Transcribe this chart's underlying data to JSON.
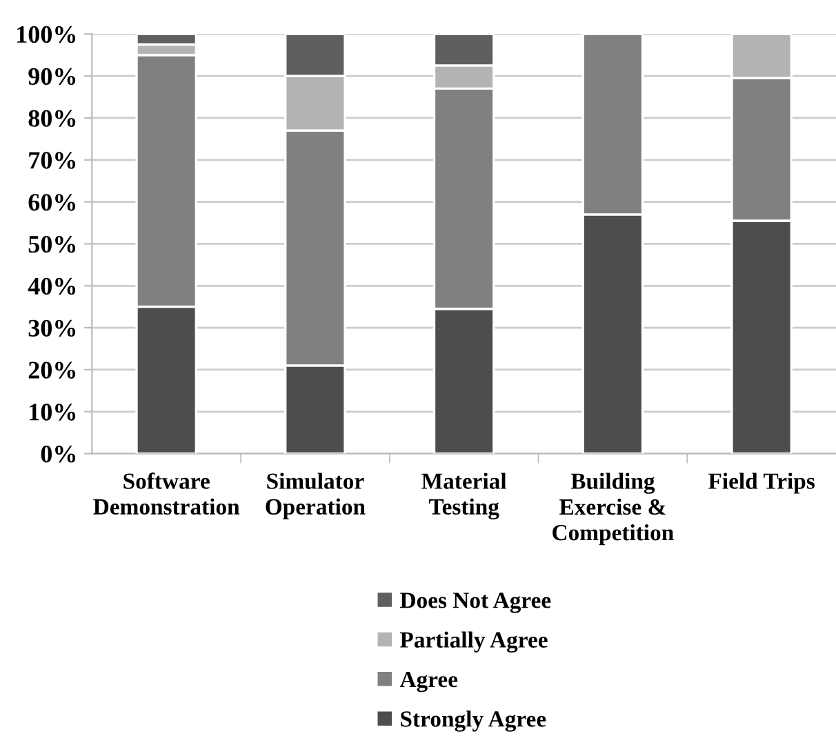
{
  "chart_data": {
    "type": "bar",
    "stacked": true,
    "categories": [
      "Software\nDemonstration",
      "Simulator\nOperation",
      "Material\nTesting",
      "Building\nExercise &\nCompetition",
      "Field Trips"
    ],
    "series": [
      {
        "name": "Strongly Agree",
        "color": "#4d4d4d",
        "values": [
          35,
          21,
          34.5,
          57,
          55.5
        ]
      },
      {
        "name": "Agree",
        "color": "#808080",
        "values": [
          60,
          56,
          52.5,
          43,
          34
        ]
      },
      {
        "name": "Partially Agree",
        "color": "#b3b3b3",
        "values": [
          2.5,
          13,
          5.5,
          0,
          10.5
        ]
      },
      {
        "name": "Does Not Agree",
        "color": "#5f5f5f",
        "values": [
          2.5,
          10,
          7.5,
          0,
          0
        ]
      }
    ],
    "ylim": [
      0,
      100
    ],
    "yticks": [
      {
        "value": 0,
        "label": "0%"
      },
      {
        "value": 10,
        "label": "10%"
      },
      {
        "value": 20,
        "label": "20%"
      },
      {
        "value": 30,
        "label": "30%"
      },
      {
        "value": 40,
        "label": "40%"
      },
      {
        "value": 50,
        "label": "50%"
      },
      {
        "value": 60,
        "label": "60%"
      },
      {
        "value": 70,
        "label": "70%"
      },
      {
        "value": 80,
        "label": "80%"
      },
      {
        "value": 90,
        "label": "90%"
      },
      {
        "value": 100,
        "label": "100%"
      }
    ],
    "grid": "y",
    "legend": "bottom"
  }
}
